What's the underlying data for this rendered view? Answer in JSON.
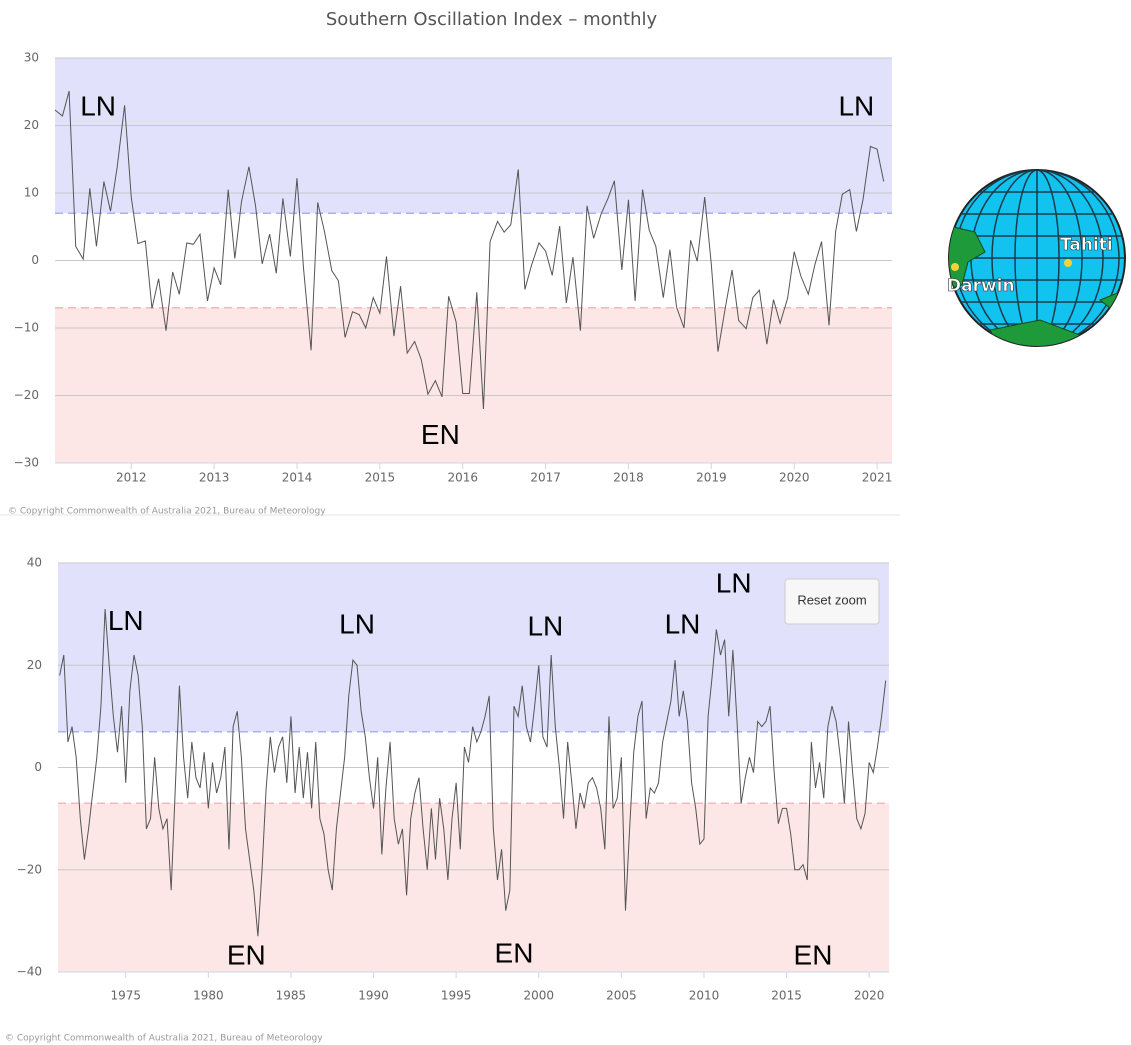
{
  "chart_data": [
    {
      "type": "line",
      "title": "Southern Oscillation Index – monthly",
      "credit": "© Copyright Commonwealth of Australia 2021, Bureau of Meteorology",
      "xlim": [
        2011.08,
        2021.18
      ],
      "xticks": [
        2012,
        2013,
        2014,
        2015,
        2016,
        2017,
        2018,
        2019,
        2020,
        2021
      ],
      "ylim": [
        -30,
        30
      ],
      "yticks": [
        {
          "value": -30,
          "label": "−30"
        },
        {
          "value": -20,
          "label": "−20"
        },
        {
          "value": -10,
          "label": "−10"
        },
        0,
        10,
        20,
        30
      ],
      "grid": true,
      "bands": {
        "upper": 7,
        "lower": -7,
        "upper_color": "#e1e1fb",
        "lower_color": "#fde6e6",
        "upper_line": "#aab0f0",
        "lower_line": "#f4b8b8"
      },
      "color": "#555555",
      "x": [
        2011.08,
        2011.17,
        2011.25,
        2011.33,
        2011.42,
        2011.5,
        2011.58,
        2011.67,
        2011.75,
        2011.83,
        2011.92,
        2012.0,
        2012.08,
        2012.17,
        2012.25,
        2012.33,
        2012.42,
        2012.5,
        2012.58,
        2012.67,
        2012.75,
        2012.83,
        2012.92,
        2013.0,
        2013.08,
        2013.17,
        2013.25,
        2013.33,
        2013.42,
        2013.5,
        2013.58,
        2013.67,
        2013.75,
        2013.83,
        2013.92,
        2014.0,
        2014.08,
        2014.17,
        2014.25,
        2014.33,
        2014.42,
        2014.5,
        2014.58,
        2014.67,
        2014.75,
        2014.83,
        2014.92,
        2015.0,
        2015.08,
        2015.17,
        2015.25,
        2015.33,
        2015.42,
        2015.5,
        2015.58,
        2015.67,
        2015.75,
        2015.83,
        2015.92,
        2016.0,
        2016.08,
        2016.17,
        2016.25,
        2016.33,
        2016.42,
        2016.5,
        2016.58,
        2016.67,
        2016.75,
        2016.83,
        2016.92,
        2017.0,
        2017.08,
        2017.17,
        2017.25,
        2017.33,
        2017.42,
        2017.5,
        2017.58,
        2017.67,
        2017.75,
        2017.83,
        2017.92,
        2018.0,
        2018.08,
        2018.17,
        2018.25,
        2018.33,
        2018.42,
        2018.5,
        2018.58,
        2018.67,
        2018.75,
        2018.83,
        2018.92,
        2019.0,
        2019.08,
        2019.17,
        2019.25,
        2019.33,
        2019.42,
        2019.5,
        2019.58,
        2019.67,
        2019.75,
        2019.83,
        2019.92,
        2020.0,
        2020.08,
        2020.17,
        2020.25,
        2020.33,
        2020.42,
        2020.5,
        2020.58,
        2020.67,
        2020.75,
        2020.83,
        2020.92,
        2021.0,
        2021.08
      ],
      "values": [
        22.3,
        21.4,
        25.1,
        2.1,
        0.2,
        10.7,
        2.1,
        11.7,
        7.3,
        13.8,
        23.0,
        9.4,
        2.5,
        2.9,
        -7.1,
        -2.7,
        -10.4,
        -1.7,
        -5.0,
        2.6,
        2.4,
        3.9,
        -6.0,
        -1.1,
        -3.6,
        10.5,
        0.3,
        8.7,
        13.9,
        8.1,
        -0.5,
        3.9,
        -1.9,
        9.2,
        0.6,
        12.2,
        -1.3,
        -13.3,
        8.6,
        4.4,
        -1.5,
        -3.0,
        -11.4,
        -7.6,
        -8.0,
        -10.0,
        -5.5,
        -7.8,
        0.6,
        -11.2,
        -3.8,
        -13.7,
        -12.0,
        -14.7,
        -19.8,
        -17.8,
        -20.2,
        -5.3,
        -9.1,
        -19.7,
        -19.7,
        -4.7,
        -22.0,
        2.8,
        5.8,
        4.2,
        5.3,
        13.5,
        -4.3,
        -0.7,
        2.6,
        1.4,
        -2.2,
        5.1,
        -6.3,
        0.5,
        -10.4,
        8.1,
        3.3,
        6.9,
        9.1,
        11.8,
        -1.4,
        9.0,
        -6.0,
        10.5,
        4.5,
        2.1,
        -5.5,
        1.6,
        -6.9,
        -10.0,
        3.0,
        -0.1,
        9.4,
        -0.6,
        -13.5,
        -6.9,
        -1.4,
        -8.9,
        -10.1,
        -5.5,
        -4.4,
        -12.4,
        -5.8,
        -9.3,
        -5.6,
        1.3,
        -2.3,
        -5.0,
        -0.6,
        2.8,
        -9.6,
        4.3,
        9.8,
        10.5,
        4.3,
        9.0,
        16.9,
        16.5,
        11.7
      ],
      "annotations": [
        {
          "text": "LN",
          "x": 2011.6,
          "y": 22.6
        },
        {
          "text": "LN",
          "x": 2020.75,
          "y": 22.6
        },
        {
          "text": "EN",
          "x": 2015.73,
          "y": -26.1
        }
      ]
    },
    {
      "type": "line",
      "credit": "© Copyright Commonwealth of Australia 2021, Bureau of Meteorology",
      "button": "Reset zoom",
      "xlim": [
        1970.9,
        2021.2
      ],
      "xticks": [
        1975,
        1980,
        1985,
        1990,
        1995,
        2000,
        2005,
        2010,
        2015,
        2020
      ],
      "ylim": [
        -40,
        40
      ],
      "yticks": [
        {
          "value": -40,
          "label": "−40"
        },
        {
          "value": -20,
          "label": "−20"
        },
        0,
        20,
        40
      ],
      "grid": true,
      "bands": {
        "upper": 7,
        "lower": -7,
        "upper_color": "#e1e1fb",
        "lower_color": "#fde6e6",
        "upper_line": "#aab0f0",
        "lower_line": "#f4b8b8"
      },
      "color": "#555555",
      "x": [
        1971,
        1971.25,
        1971.5,
        1971.75,
        1972,
        1972.25,
        1972.5,
        1972.75,
        1973,
        1973.25,
        1973.5,
        1973.75,
        1974,
        1974.25,
        1974.5,
        1974.75,
        1975,
        1975.25,
        1975.5,
        1975.75,
        1976,
        1976.25,
        1976.5,
        1976.75,
        1977,
        1977.25,
        1977.5,
        1977.75,
        1978,
        1978.25,
        1978.5,
        1978.75,
        1979,
        1979.25,
        1979.5,
        1979.75,
        1980,
        1980.25,
        1980.5,
        1980.75,
        1981,
        1981.25,
        1981.5,
        1981.75,
        1982,
        1982.25,
        1982.5,
        1982.75,
        1983,
        1983.25,
        1983.5,
        1983.75,
        1984,
        1984.25,
        1984.5,
        1984.75,
        1985,
        1985.25,
        1985.5,
        1985.75,
        1986,
        1986.25,
        1986.5,
        1986.75,
        1987,
        1987.25,
        1987.5,
        1987.75,
        1988,
        1988.25,
        1988.5,
        1988.75,
        1989,
        1989.25,
        1989.5,
        1989.75,
        1990,
        1990.25,
        1990.5,
        1990.75,
        1991,
        1991.25,
        1991.5,
        1991.75,
        1992,
        1992.25,
        1992.5,
        1992.75,
        1993,
        1993.25,
        1993.5,
        1993.75,
        1994,
        1994.25,
        1994.5,
        1994.75,
        1995,
        1995.25,
        1995.5,
        1995.75,
        1996,
        1996.25,
        1996.5,
        1996.75,
        1997,
        1997.25,
        1997.5,
        1997.75,
        1998,
        1998.25,
        1998.5,
        1998.75,
        1999,
        1999.25,
        1999.5,
        1999.75,
        2000,
        2000.25,
        2000.5,
        2000.75,
        2001,
        2001.25,
        2001.5,
        2001.75,
        2002,
        2002.25,
        2002.5,
        2002.75,
        2003,
        2003.25,
        2003.5,
        2003.75,
        2004,
        2004.25,
        2004.5,
        2004.75,
        2005,
        2005.25,
        2005.5,
        2005.75,
        2006,
        2006.25,
        2006.5,
        2006.75,
        2007,
        2007.25,
        2007.5,
        2007.75,
        2008,
        2008.25,
        2008.5,
        2008.75,
        2009,
        2009.25,
        2009.5,
        2009.75,
        2010,
        2010.25,
        2010.5,
        2010.75,
        2011,
        2011.25,
        2011.5,
        2011.75,
        2012,
        2012.25,
        2012.5,
        2012.75,
        2013,
        2013.25,
        2013.5,
        2013.75,
        2014,
        2014.25,
        2014.5,
        2014.75,
        2015,
        2015.25,
        2015.5,
        2015.75,
        2016,
        2016.25,
        2016.5,
        2016.75,
        2017,
        2017.25,
        2017.5,
        2017.75,
        2018,
        2018.25,
        2018.5,
        2018.75,
        2019,
        2019.25,
        2019.5,
        2019.75,
        2020,
        2020.25,
        2020.5,
        2020.75,
        2021
      ],
      "values": [
        18,
        22,
        5,
        8,
        2,
        -10,
        -18,
        -12,
        -5,
        2,
        12,
        31,
        20,
        10,
        3,
        12,
        -3,
        15,
        22,
        18,
        8,
        -12,
        -10,
        2,
        -8,
        -12,
        -10,
        -24,
        -4,
        16,
        2,
        -6,
        5,
        -2,
        -4,
        3,
        -8,
        1,
        -5,
        -2,
        4,
        -16,
        8,
        11,
        2,
        -12,
        -18,
        -24,
        -33,
        -20,
        -4,
        6,
        -1,
        4,
        6,
        -3,
        10,
        -5,
        4,
        -6,
        3,
        -8,
        5,
        -10,
        -13,
        -20,
        -24,
        -12,
        -5,
        2,
        14,
        21,
        20,
        11,
        6,
        -2,
        -8,
        2,
        -17,
        -4,
        5,
        -10,
        -15,
        -12,
        -25,
        -10,
        -5,
        -2,
        -12,
        -20,
        -8,
        -18,
        -6,
        -12,
        -22,
        -10,
        -3,
        -16,
        4,
        1,
        8,
        5,
        7,
        10,
        14,
        -12,
        -22,
        -16,
        -28,
        -24,
        12,
        10,
        16,
        8,
        5,
        12,
        20,
        6,
        4,
        22,
        8,
        0,
        -10,
        5,
        -3,
        -12,
        -5,
        -8,
        -3,
        -2,
        -4,
        -8,
        -16,
        10,
        -8,
        -6,
        2,
        -28,
        -12,
        3,
        10,
        13,
        -10,
        -4,
        -5,
        -3,
        5,
        9,
        13,
        21,
        10,
        15,
        9,
        -3,
        -8,
        -15,
        -14,
        10,
        18,
        27,
        22,
        25,
        10,
        23,
        9,
        -7,
        -2,
        2,
        -1,
        9,
        8,
        9,
        12,
        -1,
        -11,
        -8,
        -8,
        -13,
        -20,
        -20,
        -19,
        -22,
        5,
        -4,
        1,
        -6,
        8,
        12,
        9,
        2,
        -7,
        9,
        -1,
        -10,
        -12,
        -9,
        1,
        -1,
        4,
        10,
        17
      ],
      "annotations": [
        {
          "text": "LN",
          "x": 1975.0,
          "y": 28.3
        },
        {
          "text": "LN",
          "x": 1989.0,
          "y": 27.7
        },
        {
          "text": "LN",
          "x": 2000.4,
          "y": 27.3
        },
        {
          "text": "LN",
          "x": 2008.7,
          "y": 27.7
        },
        {
          "text": "LN",
          "x": 2011.8,
          "y": 35.7
        },
        {
          "text": "EN",
          "x": 1982.3,
          "y": -37.1
        },
        {
          "text": "EN",
          "x": 1998.5,
          "y": -36.7
        },
        {
          "text": "EN",
          "x": 2016.6,
          "y": -37.1
        }
      ]
    }
  ],
  "inset": {
    "labels": [
      "Tahiti",
      "Darwin"
    ]
  }
}
